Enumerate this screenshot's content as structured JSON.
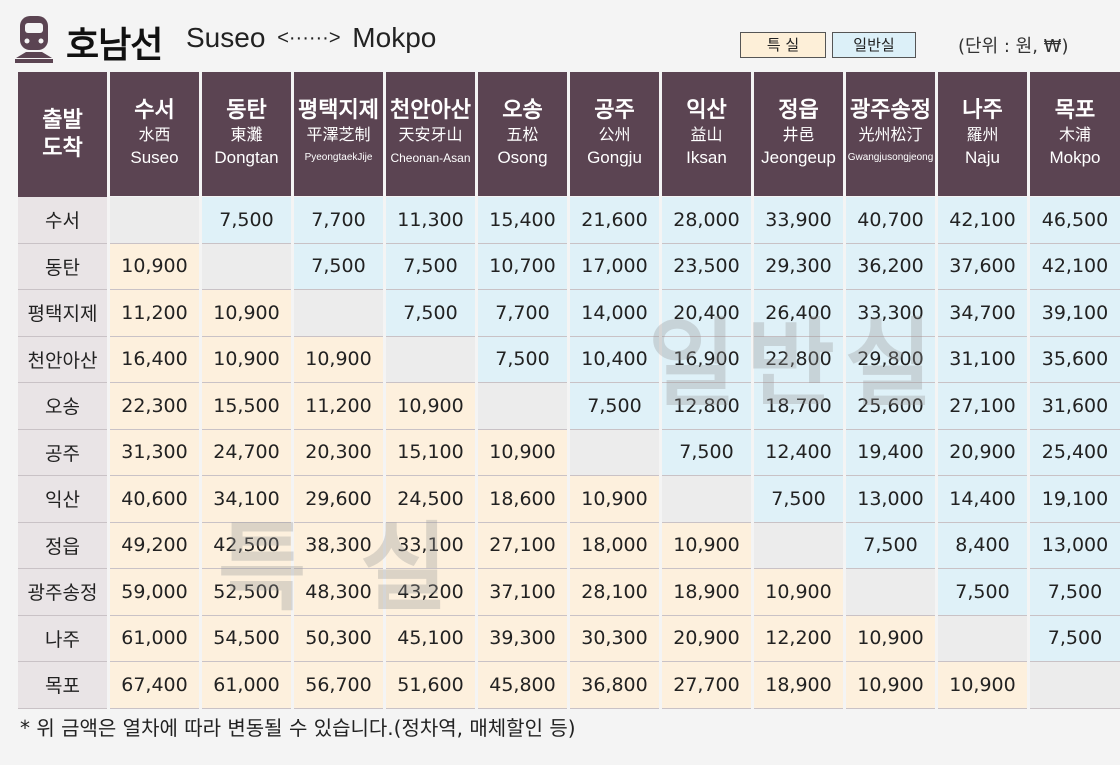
{
  "header": {
    "line_name": "호남선",
    "origin": "Suseo",
    "arrow": "<······>",
    "destination": "Mokpo",
    "legend_special": "특 실",
    "legend_normal": "일반실",
    "unit": "(단위 : 원, ₩)"
  },
  "table": {
    "corner_top": "출발",
    "corner_bottom": "도착",
    "stations": [
      {
        "ko": "수서",
        "hz": "水西",
        "en": "Suseo"
      },
      {
        "ko": "동탄",
        "hz": "東灘",
        "en": "Dongtan"
      },
      {
        "ko": "평택지제",
        "hz": "平澤芝制",
        "en": "PyeongtaekJije"
      },
      {
        "ko": "천안아산",
        "hz": "天安牙山",
        "en": "Cheonan-Asan"
      },
      {
        "ko": "오송",
        "hz": "五松",
        "en": "Osong"
      },
      {
        "ko": "공주",
        "hz": "公州",
        "en": "Gongju"
      },
      {
        "ko": "익산",
        "hz": "益山",
        "en": "Iksan"
      },
      {
        "ko": "정읍",
        "hz": "井邑",
        "en": "Jeongeup"
      },
      {
        "ko": "광주송정",
        "hz": "光州松汀",
        "en": "Gwangjusongjeong"
      },
      {
        "ko": "나주",
        "hz": "羅州",
        "en": "Naju"
      },
      {
        "ko": "목포",
        "hz": "木浦",
        "en": "Mokpo"
      }
    ],
    "rows": [
      [
        "",
        "7,500",
        "7,700",
        "11,300",
        "15,400",
        "21,600",
        "28,000",
        "33,900",
        "40,700",
        "42,100",
        "46,500"
      ],
      [
        "10,900",
        "",
        "7,500",
        "7,500",
        "10,700",
        "17,000",
        "23,500",
        "29,300",
        "36,200",
        "37,600",
        "42,100"
      ],
      [
        "11,200",
        "10,900",
        "",
        "7,500",
        "7,700",
        "14,000",
        "20,400",
        "26,400",
        "33,300",
        "34,700",
        "39,100"
      ],
      [
        "16,400",
        "10,900",
        "10,900",
        "",
        "7,500",
        "10,400",
        "16,900",
        "22,800",
        "29,800",
        "31,100",
        "35,600"
      ],
      [
        "22,300",
        "15,500",
        "11,200",
        "10,900",
        "",
        "7,500",
        "12,800",
        "18,700",
        "25,600",
        "27,100",
        "31,600"
      ],
      [
        "31,300",
        "24,700",
        "20,300",
        "15,100",
        "10,900",
        "",
        "7,500",
        "12,400",
        "19,400",
        "20,900",
        "25,400"
      ],
      [
        "40,600",
        "34,100",
        "29,600",
        "24,500",
        "18,600",
        "10,900",
        "",
        "7,500",
        "13,000",
        "14,400",
        "19,100"
      ],
      [
        "49,200",
        "42,500",
        "38,300",
        "33,100",
        "27,100",
        "18,000",
        "10,900",
        "",
        "7,500",
        "8,400",
        "13,000"
      ],
      [
        "59,000",
        "52,500",
        "48,300",
        "43,200",
        "37,100",
        "28,100",
        "18,900",
        "10,900",
        "",
        "7,500",
        "7,500"
      ],
      [
        "61,000",
        "54,500",
        "50,300",
        "45,100",
        "39,300",
        "30,300",
        "20,900",
        "12,200",
        "10,900",
        "",
        "7,500"
      ],
      [
        "67,400",
        "61,000",
        "56,700",
        "51,600",
        "45,800",
        "36,800",
        "27,700",
        "18,900",
        "10,900",
        "10,900",
        ""
      ]
    ]
  },
  "watermarks": {
    "normal": "일반실",
    "special": "특 실"
  },
  "footnote": "* 위 금액은 열차에 따라 변동될 수 있습니다.(정차역, 매체할인 등)",
  "colors": {
    "header_bg": "#5b4452",
    "special_bg": "#fdf0dd",
    "normal_bg": "#dff1f8",
    "diag_bg": "#ececec"
  },
  "icons": {
    "train": "train-icon"
  }
}
